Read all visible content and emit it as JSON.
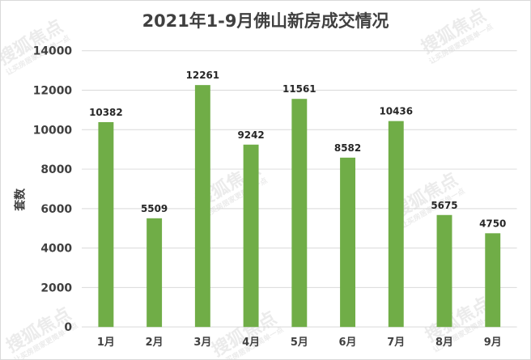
{
  "chart_data": {
    "type": "bar",
    "title": "2021年1-9月佛山新房成交情况",
    "ylabel": "套数",
    "xlabel": "",
    "categories": [
      "1月",
      "2月",
      "3月",
      "4月",
      "5月",
      "6月",
      "7月",
      "8月",
      "9月"
    ],
    "series": [
      {
        "values": [
          10382,
          5509,
          12261,
          9242,
          11561,
          8582,
          10436,
          5675,
          4750
        ]
      }
    ],
    "ylim": [
      0,
      14000
    ],
    "yticks": [
      0,
      2000,
      4000,
      6000,
      8000,
      10000,
      12000,
      14000
    ],
    "grid": true,
    "bar_color": "#70ad47",
    "data_labels": true
  },
  "watermark": {
    "brand": "搜狐焦点",
    "slogan": "让买房居家更简单一点"
  }
}
